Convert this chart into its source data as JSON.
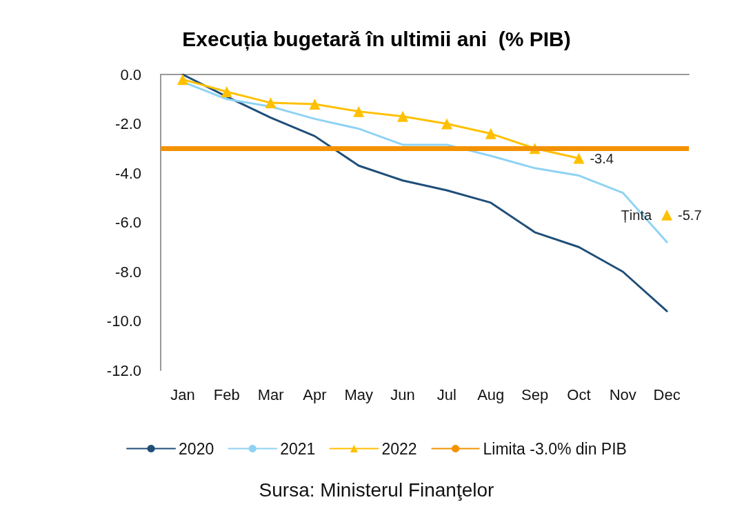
{
  "chart_data": {
    "type": "line",
    "title": "Execuția bugetară în ultimii ani  (% PIB)",
    "categories": [
      "Jan",
      "Feb",
      "Mar",
      "Apr",
      "May",
      "Jun",
      "Jul",
      "Aug",
      "Sep",
      "Oct",
      "Nov",
      "Dec"
    ],
    "series": [
      {
        "name": "2020",
        "color": "#1f4e79",
        "marker": "none",
        "values": [
          0,
          -0.9,
          -1.75,
          -2.5,
          -3.7,
          -4.3,
          -4.7,
          -5.2,
          -6.4,
          -7.0,
          -8.0,
          -9.6
        ]
      },
      {
        "name": "2021",
        "color": "#8fd3f4",
        "marker": "none",
        "values": [
          -0.3,
          -1.0,
          -1.3,
          -1.8,
          -2.2,
          -2.85,
          -2.85,
          -3.3,
          -3.8,
          -4.1,
          -4.8,
          -6.8
        ]
      },
      {
        "name": "2022",
        "color": "#ffc000",
        "marker": "triangle",
        "values": [
          -0.2,
          -0.7,
          -1.15,
          -1.2,
          -1.5,
          -1.7,
          -2.0,
          -2.4,
          -3.0,
          -3.4,
          null,
          -5.7
        ],
        "value_labels": [
          null,
          null,
          null,
          null,
          null,
          null,
          null,
          null,
          null,
          "-3.4",
          null,
          "-5.7"
        ]
      }
    ],
    "ref_lines": [
      {
        "axis": "y",
        "value": -3.0,
        "label": "Limita -3.0% din PIB",
        "color": "#f39200"
      }
    ],
    "annotations": [
      {
        "text": "Ținta",
        "x": "Dec",
        "y": -5.7
      },
      "Sursa: Ministerul Finanţelor"
    ],
    "ylim": [
      -12,
      0
    ],
    "yticks": [
      {
        "value": 0,
        "label": "0.0"
      },
      {
        "value": -2,
        "label": "-2.0"
      },
      {
        "value": -4,
        "label": "-4.0"
      },
      {
        "value": -6,
        "label": "-6.0"
      },
      {
        "value": -8,
        "label": "-8.0"
      },
      {
        "value": -10,
        "label": "-10.0"
      },
      {
        "value": -12,
        "label": "-12.0"
      }
    ],
    "grid": false,
    "legend": "bottom",
    "line_style": "solid"
  }
}
